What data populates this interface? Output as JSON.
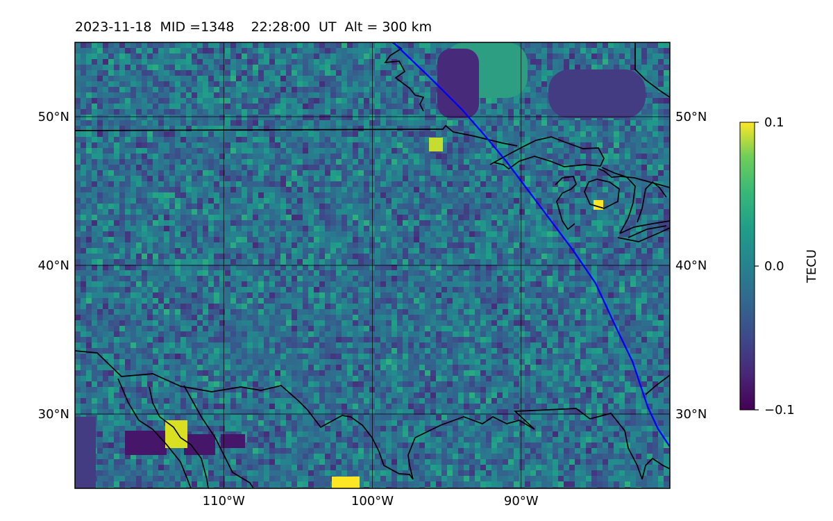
{
  "title": "2023-11-18  MID =1348    22:28:00  UT  Alt = 300 km",
  "map": {
    "lon_range": [
      -120,
      -80
    ],
    "lat_range": [
      25,
      55
    ],
    "lon_gridlines": [
      -110,
      -100,
      -90
    ],
    "lat_gridlines": [
      30,
      40,
      50
    ],
    "x_tick_labels": [
      "110°W",
      "100°W",
      "90°W"
    ],
    "y_tick_labels": [
      "30°N",
      "40°N",
      "50°N"
    ],
    "colormap": "viridis",
    "field": "TEC perturbation",
    "colors": {
      "boundary": "#000000",
      "track": "#0000ff",
      "grid": "#000000"
    }
  },
  "colorbar": {
    "label": "TECU",
    "min": -0.1,
    "max": 0.1,
    "ticks": [
      0.1,
      0.0,
      -0.1
    ],
    "tick_labels": [
      "0.1",
      "0.0",
      "−0.1"
    ]
  },
  "track": {
    "color": "#0000ff",
    "points": [
      [
        -98.6,
        55
      ],
      [
        -96,
        52.5
      ],
      [
        -94,
        50.5
      ],
      [
        -92.5,
        48.8
      ],
      [
        -91,
        47
      ],
      [
        -89.5,
        45
      ],
      [
        -88,
        43
      ],
      [
        -86.5,
        41
      ],
      [
        -85,
        38.8
      ],
      [
        -83.7,
        36
      ],
      [
        -82.5,
        33.5
      ],
      [
        -81.5,
        30.5
      ],
      [
        -80.8,
        29
      ],
      [
        -80,
        27.8
      ]
    ]
  }
}
